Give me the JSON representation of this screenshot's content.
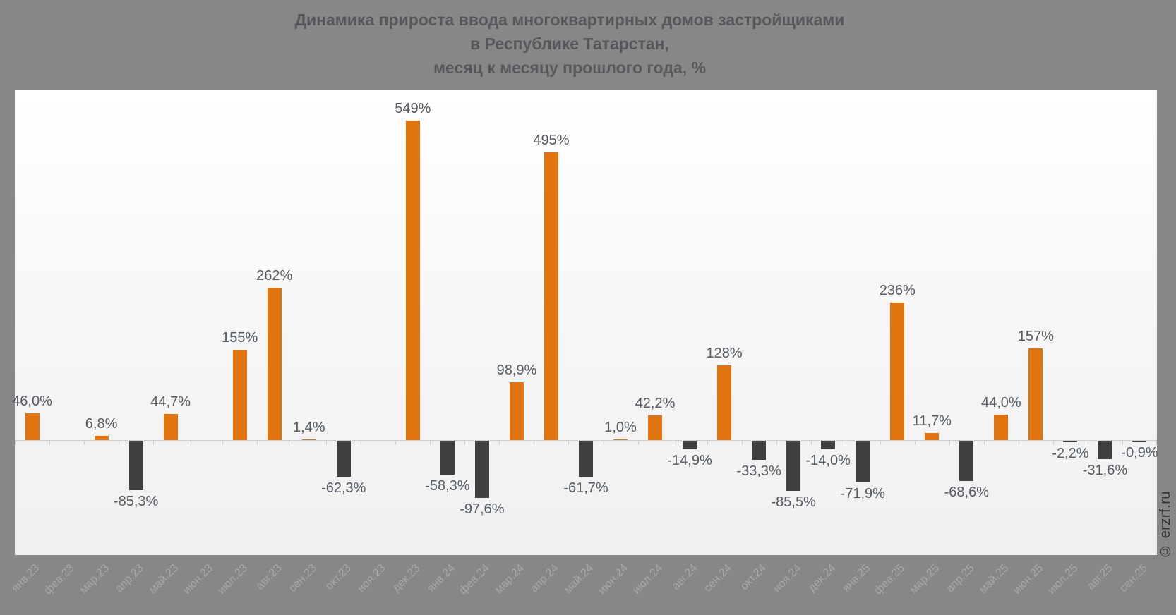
{
  "title": {
    "line1": "Динамика прироста ввода многоквартирных домов застройщиками",
    "line2": "в Республике Татарстан,",
    "line3": "месяц к месяцу прошлого года, %"
  },
  "watermark": "© erzrf.ru",
  "chart_data": {
    "type": "bar",
    "title": "Динамика прироста ввода многоквартирных домов застройщиками в Республике Татарстан, месяц к месяцу прошлого года, %",
    "categories": [
      "янв.23",
      "фев.23",
      "мар.23",
      "апр.23",
      "май.23",
      "июн.23",
      "июл.23",
      "авг.23",
      "сен.23",
      "окт.23",
      "ноя.23",
      "дек.23",
      "янв.24",
      "фев.24",
      "мар.24",
      "апр.24",
      "май.24",
      "июн.24",
      "июл.24",
      "авг.24",
      "сен.24",
      "окт.24",
      "ноя.24",
      "дек.24",
      "янв.25",
      "фев.25",
      "мар.25",
      "апр.25",
      "май.25",
      "июн.25",
      "июл.25",
      "авг.25",
      "сен.25"
    ],
    "values": [
      46.0,
      null,
      6.8,
      -85.3,
      44.7,
      null,
      155,
      262,
      1.4,
      -62.3,
      null,
      549,
      -58.3,
      -97.6,
      98.9,
      495,
      -61.7,
      1.0,
      42.2,
      -14.9,
      128,
      -33.3,
      -85.5,
      -14.0,
      -71.9,
      236,
      11.7,
      -68.6,
      44.0,
      157,
      -2.2,
      -31.6,
      -0.9
    ],
    "labels": [
      "46,0%",
      null,
      "6,8%",
      "-85,3%",
      "44,7%",
      null,
      "155%",
      "262%",
      "1,4%",
      "-62,3%",
      null,
      "549%",
      "-58,3%",
      "-97,6%",
      "98,9%",
      "495%",
      "-61,7%",
      "1,0%",
      "42,2%",
      "-14,9%",
      "128%",
      "-33,3%",
      "-85,5%",
      "-14,0%",
      "-71,9%",
      "236%",
      "11,7%",
      "-68,6%",
      "44,0%",
      "157%",
      "-2,2%",
      "-31,6%",
      "-0,9%"
    ],
    "value_suffix": "%",
    "xlabel": "",
    "ylabel": "",
    "ylim": [
      -200,
      610
    ],
    "grid": false,
    "legend": false,
    "colors": {
      "positive_bar": "#E1740F",
      "negative_bar": "#404040",
      "background_outer": "#878787",
      "plot_background_top": "#FFFFFF",
      "plot_background_bottom": "#F0F0F0",
      "axis_line": "#CFCFCF",
      "data_label": "#545A61",
      "category_label": "#A7A7A7",
      "title_text": "#57585C"
    }
  }
}
